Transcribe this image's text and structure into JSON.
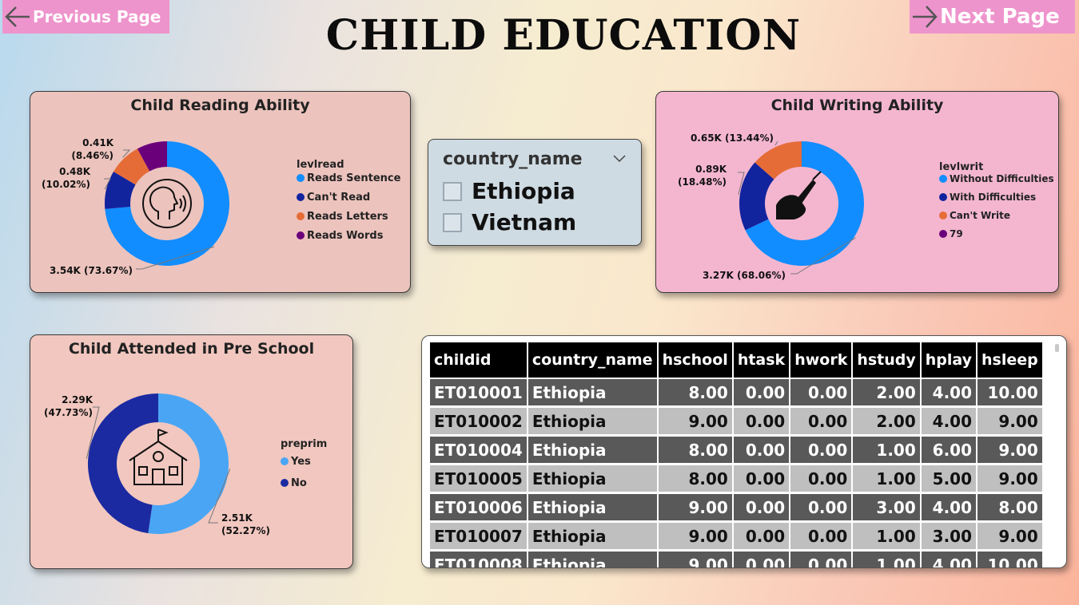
{
  "nav": {
    "prev_label": "Previous Page",
    "next_label": "Next Page"
  },
  "page_title": "CHILD EDUCATION",
  "slicer": {
    "field": "country_name",
    "options": [
      "Ethiopia",
      "Vietnam"
    ]
  },
  "colors": {
    "blue": "#118dff",
    "navy": "#12239e",
    "orange": "#e66c37",
    "purple": "#6b007b",
    "light_blue": "#4aa6f5",
    "deep_navy": "#1b2aa1"
  },
  "icons": [
    "speaking-head-icon",
    "writing-hand-icon",
    "schoolhouse-icon",
    "chevron-down-icon",
    "arrow-left-icon",
    "arrow-right-icon"
  ],
  "chart_data": [
    {
      "type": "pie",
      "donut": true,
      "title": "Child Reading Ability",
      "legend_title": "levlread",
      "legend_position": "right",
      "slices": [
        {
          "label": "Reads Sentence",
          "value": 3540,
          "percent": 73.67,
          "value_label": "3.54K (73.67%)",
          "color": "#118dff"
        },
        {
          "label": "Can't Read",
          "value": 480,
          "percent": 10.02,
          "value_label": "0.48K\n(10.02%)",
          "color": "#12239e"
        },
        {
          "label": "Reads Letters",
          "value": 410,
          "percent": 8.46,
          "value_label": "0.41K\n(8.46%)",
          "color": "#e66c37"
        },
        {
          "label": "Reads Words",
          "value": 380,
          "percent": 7.85,
          "value_label": "",
          "color": "#6b007b"
        }
      ]
    },
    {
      "type": "pie",
      "donut": true,
      "title": "Child Writing Ability",
      "legend_title": "levlwrit",
      "legend_position": "right",
      "slices": [
        {
          "label": "Without Difficulties",
          "value": 3270,
          "percent": 68.06,
          "value_label": "3.27K (68.06%)",
          "color": "#118dff"
        },
        {
          "label": "With Difficulties",
          "value": 890,
          "percent": 18.48,
          "value_label": "0.89K\n(18.48%)",
          "color": "#12239e"
        },
        {
          "label": "Can't Write",
          "value": 650,
          "percent": 13.44,
          "value_label": "0.65K (13.44%)",
          "color": "#e66c37"
        },
        {
          "label": "79",
          "value": 1,
          "percent": 0.02,
          "value_label": "",
          "color": "#6b007b"
        }
      ]
    },
    {
      "type": "pie",
      "donut": true,
      "title": "Child Attended in Pre School",
      "legend_title": "preprim",
      "legend_position": "right",
      "slices": [
        {
          "label": "Yes",
          "value": 2510,
          "percent": 52.27,
          "value_label": "2.51K\n(52.27%)",
          "color": "#4aa6f5"
        },
        {
          "label": "No",
          "value": 2290,
          "percent": 47.73,
          "value_label": "2.29K\n(47.73%)",
          "color": "#1b2aa1"
        }
      ]
    },
    {
      "type": "table",
      "columns": [
        "childid",
        "country_name",
        "hschool",
        "htask",
        "hwork",
        "hstudy",
        "hplay",
        "hsleep"
      ],
      "rows": [
        [
          "ET010001",
          "Ethiopia",
          "8.00",
          "0.00",
          "0.00",
          "2.00",
          "4.00",
          "10.00"
        ],
        [
          "ET010002",
          "Ethiopia",
          "9.00",
          "0.00",
          "0.00",
          "2.00",
          "4.00",
          "9.00"
        ],
        [
          "ET010004",
          "Ethiopia",
          "8.00",
          "0.00",
          "0.00",
          "1.00",
          "6.00",
          "9.00"
        ],
        [
          "ET010005",
          "Ethiopia",
          "8.00",
          "0.00",
          "0.00",
          "1.00",
          "5.00",
          "9.00"
        ],
        [
          "ET010006",
          "Ethiopia",
          "9.00",
          "0.00",
          "0.00",
          "3.00",
          "4.00",
          "8.00"
        ],
        [
          "ET010007",
          "Ethiopia",
          "9.00",
          "0.00",
          "0.00",
          "1.00",
          "3.00",
          "9.00"
        ]
      ]
    }
  ]
}
